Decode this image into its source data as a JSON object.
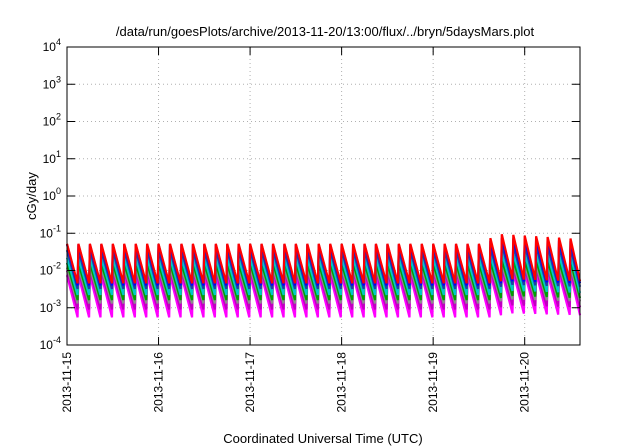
{
  "chart_data": {
    "type": "line",
    "title": "/data/run/goesPlots/archive/2013-11-20/13:00/flux/../bryn/5daysMars.plot",
    "xlabel": "Coordinated Universal Time (UTC)",
    "ylabel": "cGy/day",
    "yscale": "log",
    "ylim": [
      0.0001,
      10000
    ],
    "y_ticks": [
      {
        "value": 0.0001,
        "base": "10",
        "exp": "-4"
      },
      {
        "value": 0.001,
        "base": "10",
        "exp": "-3"
      },
      {
        "value": 0.01,
        "base": "10",
        "exp": "-2"
      },
      {
        "value": 0.1,
        "base": "10",
        "exp": "-1"
      },
      {
        "value": 1,
        "base": "10",
        "exp": "0"
      },
      {
        "value": 10,
        "base": "10",
        "exp": "1"
      },
      {
        "value": 100,
        "base": "10",
        "exp": "2"
      },
      {
        "value": 1000,
        "base": "10",
        "exp": "3"
      },
      {
        "value": 10000,
        "base": "10",
        "exp": "4"
      }
    ],
    "xlim": [
      "2013-11-15T00:00",
      "2013-11-20T14:30"
    ],
    "x_ticks": [
      "2013-11-15",
      "2013-11-16",
      "2013-11-17",
      "2013-11-18",
      "2013-11-19",
      "2013-11-20"
    ],
    "grid": true,
    "sawtooth_period_hours": 3,
    "series": [
      {
        "color": "#ff0000",
        "peak": 0.052,
        "trough": 0.0045,
        "storm_peak": 0.095
      },
      {
        "color": "#0000ff",
        "peak": 0.05,
        "trough": 0.004,
        "storm_peak": 0.075
      },
      {
        "color": "#1f3ea8",
        "peak": 0.035,
        "trough": 0.0032,
        "storm_peak": 0.05
      },
      {
        "color": "#00c8c8",
        "peak": 0.022,
        "trough": 0.0022,
        "storm_peak": 0.03
      },
      {
        "color": "#00a000",
        "peak": 0.016,
        "trough": 0.0016,
        "storm_peak": 0.02
      },
      {
        "color": "#8c8c8c",
        "peak": 0.012,
        "trough": 0.0013,
        "storm_peak": 0.015
      },
      {
        "color": "#c000c0",
        "peak": 0.01,
        "trough": 0.0009,
        "storm_peak": 0.012
      },
      {
        "color": "#ff00ff",
        "peak": 0.0075,
        "trough": 0.00055,
        "storm_peak": 0.009
      }
    ]
  }
}
